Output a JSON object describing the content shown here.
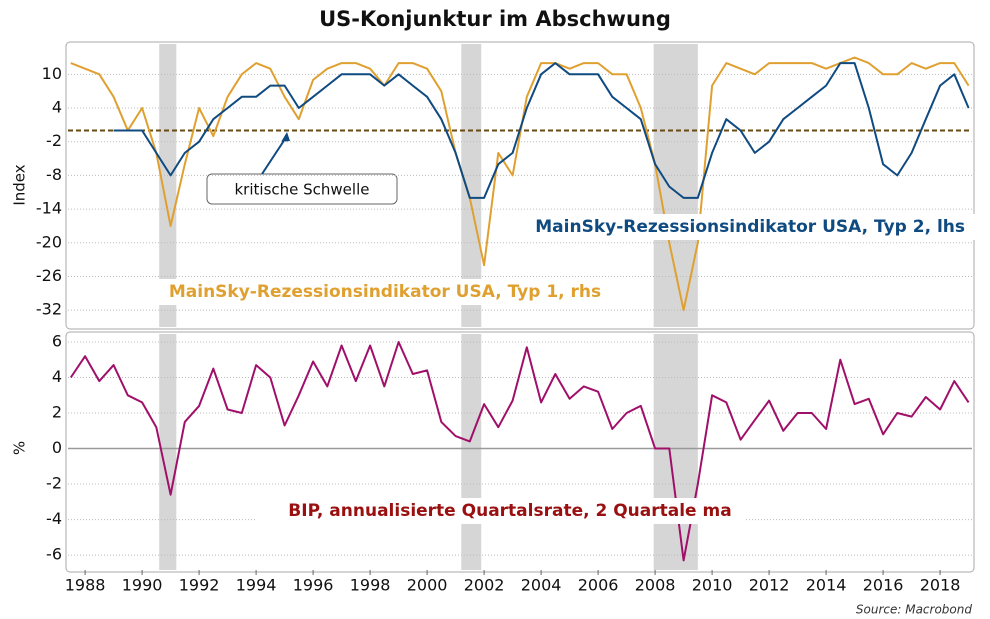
{
  "chart_data": [
    {
      "type": "line",
      "title": "US-Konjunktur im Abschwung",
      "y_label": "Index",
      "annotation": "kritische Schwelle",
      "threshold": 0,
      "recessions": [
        [
          1990.6,
          1991.2
        ],
        [
          2001.2,
          2001.9
        ],
        [
          2007.95,
          2009.5
        ]
      ],
      "xlim": [
        1987.4,
        2019.12
      ],
      "ylim": [
        -35,
        15.4
      ],
      "yticks": [
        10,
        4,
        -2,
        -8,
        -14,
        -20,
        -26,
        -32
      ],
      "grid": true,
      "x": [
        1987.5,
        1988,
        1988.5,
        1989,
        1989.5,
        1990,
        1990.5,
        1991,
        1991.5,
        1992,
        1992.5,
        1993,
        1993.5,
        1994,
        1994.5,
        1995,
        1995.5,
        1996,
        1996.5,
        1997,
        1997.5,
        1998,
        1998.5,
        1999,
        1999.5,
        2000,
        2000.5,
        2001,
        2001.5,
        2002,
        2002.5,
        2003,
        2003.5,
        2004,
        2004.5,
        2005,
        2005.5,
        2006,
        2006.5,
        2007,
        2007.5,
        2008,
        2008.5,
        2009,
        2009.5,
        2010,
        2010.5,
        2011,
        2011.5,
        2012,
        2012.5,
        2013,
        2013.5,
        2014,
        2014.5,
        2015,
        2015.5,
        2016,
        2016.5,
        2017,
        2017.5,
        2018,
        2018.5,
        2019
      ],
      "series": [
        {
          "name": "MainSky-Rezessionsindikator USA, Typ 1, rhs",
          "color": "#e0a030",
          "values": [
            12,
            11,
            10,
            6,
            0,
            4,
            -4,
            -17,
            -6,
            4,
            -1,
            6,
            10,
            12,
            11,
            6,
            2,
            9,
            11,
            12,
            12,
            11,
            8,
            12,
            12,
            11,
            7,
            -4,
            -12,
            -24,
            -4,
            -8,
            6,
            12,
            12,
            11,
            12,
            12,
            10,
            10,
            4,
            -6,
            -20,
            -32,
            -20,
            8,
            12,
            11,
            10,
            12,
            12,
            12,
            12,
            11,
            12,
            13,
            12,
            10,
            10,
            12,
            11,
            12,
            12,
            8
          ]
        },
        {
          "name": "MainSky-Rezessionsindikator USA, Typ 2, lhs",
          "color": "#0f4a80",
          "values": [
            null,
            null,
            null,
            0,
            0,
            0,
            -4,
            -8,
            -4,
            -2,
            2,
            4,
            6,
            6,
            8,
            8,
            4,
            6,
            8,
            10,
            10,
            10,
            8,
            10,
            8,
            6,
            2,
            -4,
            -12,
            -12,
            -6,
            -4,
            4,
            10,
            12,
            10,
            10,
            10,
            6,
            4,
            2,
            -6,
            -10,
            -12,
            -12,
            -4,
            2,
            0,
            -4,
            -2,
            2,
            4,
            6,
            8,
            12,
            12,
            4,
            -6,
            -8,
            -4,
            2,
            8,
            10,
            4
          ]
        }
      ]
    },
    {
      "type": "line",
      "y_label": "%",
      "source": "Source: Macrobond",
      "zero": 0,
      "recessions": [
        [
          1990.6,
          1991.2
        ],
        [
          2001.2,
          2001.9
        ],
        [
          2007.95,
          2009.5
        ]
      ],
      "xlim": [
        1987.4,
        2019.12
      ],
      "ylim": [
        -6.84,
        6.45
      ],
      "yticks": [
        6,
        4,
        2,
        0,
        -2,
        -4,
        -6
      ],
      "grid": true,
      "xticks": [
        1988,
        1990,
        1992,
        1994,
        1996,
        1998,
        2000,
        2002,
        2004,
        2006,
        2008,
        2010,
        2012,
        2014,
        2016,
        2018
      ],
      "x": [
        1987.5,
        1988,
        1988.5,
        1989,
        1989.5,
        1990,
        1990.5,
        1991,
        1991.5,
        1992,
        1992.5,
        1993,
        1993.5,
        1994,
        1994.5,
        1995,
        1995.5,
        1996,
        1996.5,
        1997,
        1997.5,
        1998,
        1998.5,
        1999,
        1999.5,
        2000,
        2000.5,
        2001,
        2001.5,
        2002,
        2002.5,
        2003,
        2003.5,
        2004,
        2004.5,
        2005,
        2005.5,
        2006,
        2006.5,
        2007,
        2007.5,
        2008,
        2008.5,
        2009,
        2009.5,
        2010,
        2010.5,
        2011,
        2011.5,
        2012,
        2012.5,
        2013,
        2013.5,
        2014,
        2014.5,
        2015,
        2015.5,
        2016,
        2016.5,
        2017,
        2017.5,
        2018,
        2018.5,
        2019
      ],
      "series": [
        {
          "name": "BIP, annualisierte Quartalsrate, 2 Quartale ma",
          "color": "#a0106a",
          "label_color": "#9a1010",
          "values": [
            4,
            5.2,
            3.8,
            4.7,
            3,
            2.6,
            1.2,
            -2.6,
            1.5,
            2.4,
            4.5,
            2.2,
            2,
            4.7,
            4,
            1.3,
            3,
            4.9,
            3.5,
            5.8,
            3.8,
            5.8,
            3.5,
            6,
            4.2,
            4.4,
            1.5,
            0.7,
            0.4,
            2.5,
            1.2,
            2.7,
            5.7,
            2.6,
            4.2,
            2.8,
            3.5,
            3.2,
            1.1,
            2,
            2.4,
            0,
            0,
            -6.3,
            -2,
            3,
            2.6,
            0.5,
            1.6,
            2.7,
            1,
            2,
            2,
            1.1,
            5,
            2.5,
            2.8,
            0.8,
            2,
            1.8,
            2.9,
            2.2,
            3.8,
            2.6
          ]
        }
      ]
    }
  ]
}
